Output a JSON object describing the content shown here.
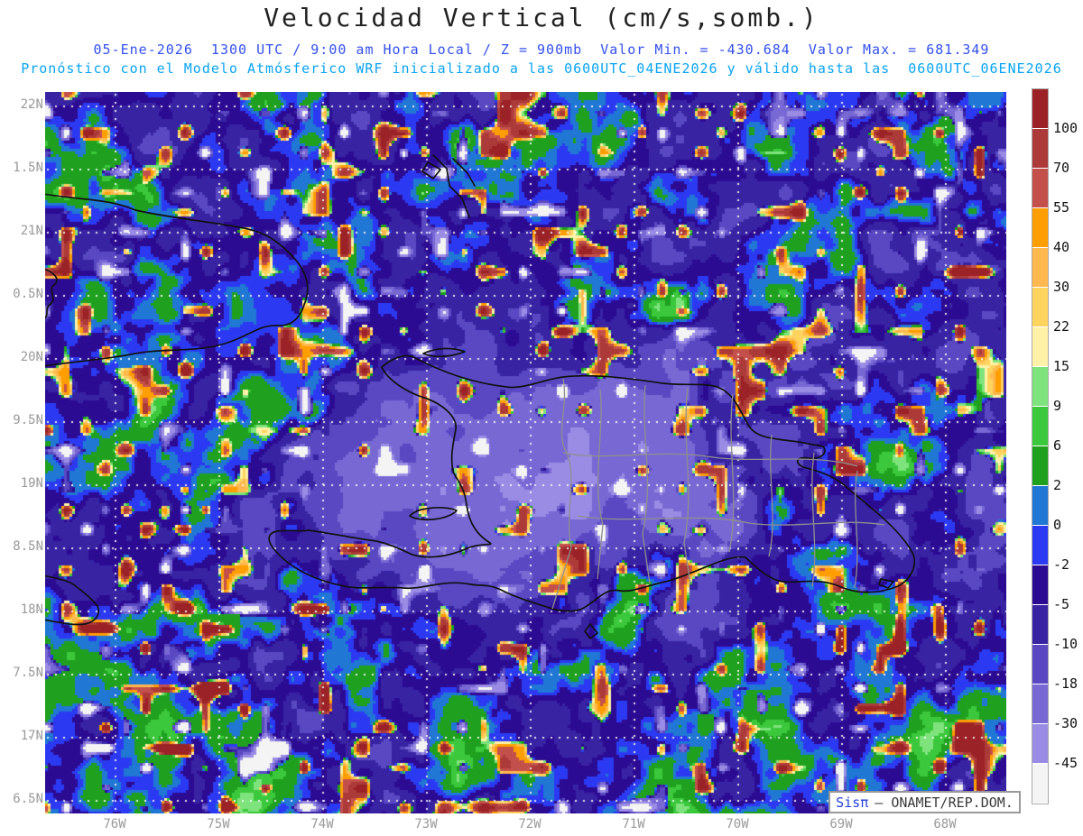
{
  "header": {
    "title": "Velocidad Vertical (cm/s,somb.)",
    "line1": {
      "datetime": "05-Ene-2026  1300 UTC / 9:00 am Hora Local / Z = 900mb",
      "valor_min": "Valor Min. = -430.684",
      "valor_max": "Valor Max. = 681.349",
      "color": "#3350ee"
    },
    "line2": {
      "text": "Pronóstico con el Modelo Atmósferico WRF inicializado a las 0600UTC_04ENE2026 y válido hasta las  0600UTC_06ENE2026",
      "color": "#09a4f2"
    }
  },
  "map": {
    "lat_labels": [
      "22N",
      "1.5N",
      "21N",
      "0.5N",
      "20N",
      "9.5N",
      "19N",
      "8.5N",
      "18N",
      "7.5N",
      "17N",
      "6.5N"
    ],
    "lon_labels": [
      "76W",
      "75W",
      "74W",
      "73W",
      "72W",
      "71W",
      "70W",
      "69W",
      "68W"
    ]
  },
  "colorbar": {
    "tick_labels": [
      "100",
      "70",
      "55",
      "40",
      "30",
      "22",
      "15",
      "9",
      "6",
      "2",
      "0",
      "-2",
      "-5",
      "-10",
      "-18",
      "-30",
      "-45"
    ],
    "colors_top_to_bottom": [
      "#9b2226",
      "#ab3a38",
      "#c4504b",
      "#ff9e00",
      "#ffb84d",
      "#ffd45e",
      "#fff2a8",
      "#7fe37d",
      "#3cc83c",
      "#1fa11f",
      "#2077d4",
      "#2b3af2",
      "#2c0b93",
      "#3823a3",
      "#5948c2",
      "#7868d4",
      "#9a8ce4",
      "#f4f4f4"
    ],
    "thresholds_ascending": [
      -45,
      -30,
      -18,
      -10,
      -5,
      -2,
      0,
      2,
      6,
      9,
      15,
      22,
      30,
      40,
      55,
      70,
      100
    ]
  },
  "branding": {
    "app": "Sisπ",
    "org": "– ONAMET/REP.DOM."
  }
}
